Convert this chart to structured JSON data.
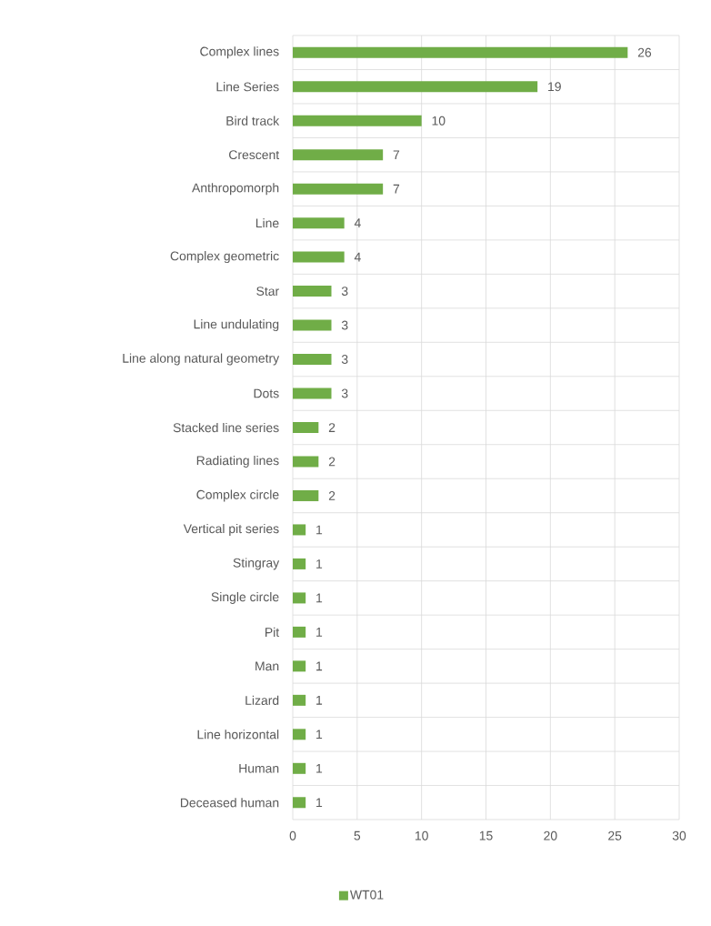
{
  "chart_data": {
    "type": "bar",
    "orientation": "horizontal",
    "categories": [
      "Complex lines",
      "Line Series",
      "Bird track",
      "Crescent",
      "Anthropomorph",
      "Line",
      "Complex geometric",
      "Star",
      "Line undulating",
      "Line along natural geometry",
      "Dots",
      "Stacked line series",
      "Radiating lines",
      "Complex circle",
      "Vertical pit series",
      "Stingray",
      "Single circle",
      "Pit",
      "Man",
      "Lizard",
      "Line horizontal",
      "Human",
      "Deceased human"
    ],
    "series": [
      {
        "name": "WT01",
        "color": "#70ad47",
        "values": [
          26,
          19,
          10,
          7,
          7,
          4,
          4,
          3,
          3,
          3,
          3,
          2,
          2,
          2,
          1,
          1,
          1,
          1,
          1,
          1,
          1,
          1,
          1
        ]
      }
    ],
    "xlim": [
      0,
      30
    ],
    "xticks": [
      0,
      5,
      10,
      15,
      20,
      25,
      30
    ],
    "grid": true,
    "legend": "bottom",
    "data_labels": true
  }
}
